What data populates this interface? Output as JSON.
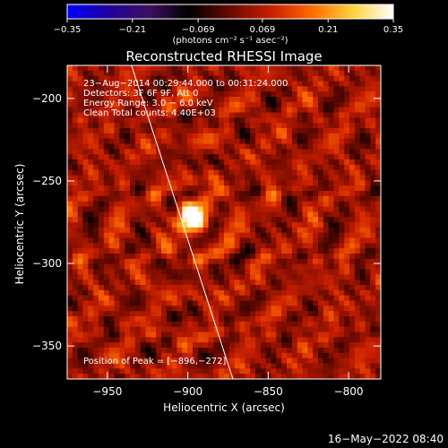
{
  "colorbar": {
    "ticks": [
      {
        "label": "−0.35",
        "value": -0.35
      },
      {
        "label": "−0.21",
        "value": -0.21
      },
      {
        "label": "−0.069",
        "value": -0.069
      },
      {
        "label": "0.069",
        "value": 0.069
      },
      {
        "label": "0.21",
        "value": 0.21
      },
      {
        "label": "0.35",
        "value": 0.35
      }
    ],
    "units_label": "(photons cm⁻² s⁻¹ asec⁻²)",
    "range": [
      -0.35,
      0.35
    ],
    "colormap_stops": [
      "#0000ff",
      "#2000a0",
      "#3c1060",
      "#000000",
      "#6a0a00",
      "#c81e00",
      "#ff6a00",
      "#ffd23c",
      "#ffffff"
    ]
  },
  "chart_data": {
    "type": "heatmap",
    "title": "Reconstructed RHESSI Image",
    "xlabel": "Heliocentric X (arcsec)",
    "ylabel": "Heliocentric Y (arcsec)",
    "xlim": [
      -975,
      -780
    ],
    "ylim": [
      -370,
      -180
    ],
    "x_ticks": [
      {
        "label": "−950",
        "value": -950
      },
      {
        "label": "−900",
        "value": -900
      },
      {
        "label": "−850",
        "value": -850
      },
      {
        "label": "−800",
        "value": -800
      }
    ],
    "y_ticks": [
      {
        "label": "−200",
        "value": -200
      },
      {
        "label": "−250",
        "value": -250
      },
      {
        "label": "−300",
        "value": -300
      },
      {
        "label": "−350",
        "value": -350
      }
    ],
    "peak": {
      "x": -896,
      "y": -272
    },
    "annotations": [
      "23−Aug−2014 00:29:44.000 to 00:31:24.000",
      "Detectors: 3F 6F 9F, Att 0",
      "Energy Range: 3.0 − 6.0 keV",
      "Clean    Total counts: 4.40E+03"
    ],
    "peak_label": "Position of Peak = [−896,−272]",
    "limb_line": [
      [
        -935,
        -180
      ],
      [
        -872,
        -370
      ]
    ],
    "grid": false
  },
  "timestamp": "16−May−2022 08:40"
}
